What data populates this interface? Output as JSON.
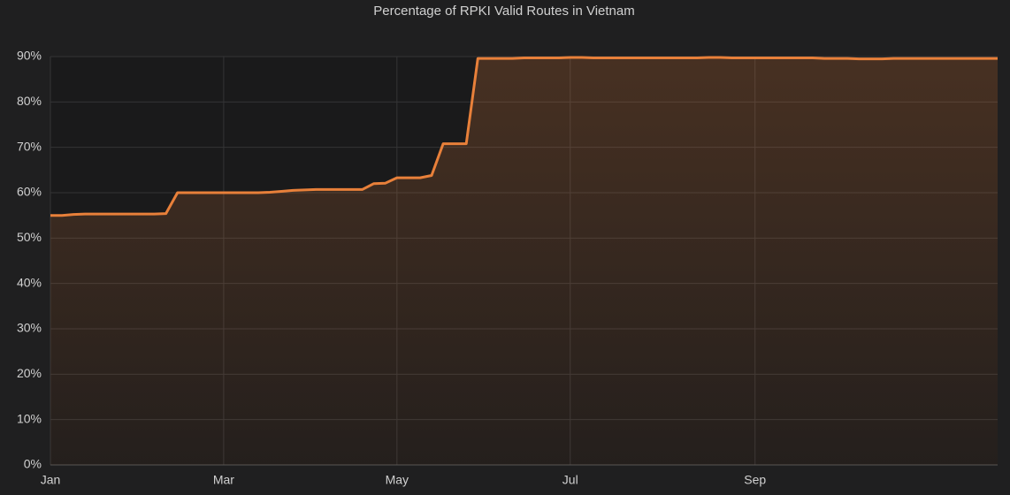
{
  "chart_data": {
    "type": "line",
    "title": "Percentage of RPKI Valid Routes in Vietnam",
    "categories": [
      "Jan",
      null,
      null,
      null,
      null,
      null,
      null,
      null,
      null,
      null,
      null,
      null,
      null,
      null,
      null,
      "Mar",
      null,
      null,
      null,
      null,
      null,
      null,
      null,
      null,
      null,
      null,
      null,
      null,
      null,
      null,
      "May",
      null,
      null,
      null,
      null,
      null,
      null,
      null,
      null,
      null,
      null,
      null,
      null,
      null,
      null,
      "Jul",
      null,
      null,
      null,
      null,
      null,
      null,
      null,
      null,
      null,
      null,
      null,
      null,
      null,
      null,
      null,
      "Sep",
      null,
      null,
      null,
      null,
      null,
      null,
      null,
      null,
      null,
      null,
      null,
      null,
      null,
      null,
      null,
      null,
      null,
      null,
      null,
      null,
      null
    ],
    "values": [
      55,
      55,
      55.2,
      55.3,
      55.3,
      55.3,
      55.3,
      55.3,
      55.3,
      55.3,
      55.4,
      60,
      60,
      60,
      60,
      60,
      60,
      60,
      60,
      60.1,
      60.3,
      60.5,
      60.6,
      60.7,
      60.7,
      60.7,
      60.7,
      60.7,
      62,
      62.1,
      63.3,
      63.3,
      63.3,
      63.8,
      70.8,
      70.8,
      70.8,
      89.6,
      89.6,
      89.6,
      89.6,
      89.7,
      89.7,
      89.7,
      89.7,
      89.8,
      89.8,
      89.7,
      89.7,
      89.7,
      89.7,
      89.7,
      89.7,
      89.7,
      89.7,
      89.7,
      89.7,
      89.8,
      89.8,
      89.7,
      89.7,
      89.7,
      89.7,
      89.7,
      89.7,
      89.7,
      89.7,
      89.6,
      89.6,
      89.6,
      89.5,
      89.5,
      89.5,
      89.6,
      89.6,
      89.6,
      89.6,
      89.6,
      89.6,
      89.6,
      89.6,
      89.6,
      89.6
    ],
    "color": "#e8803a",
    "ylim": [
      0,
      90
    ],
    "yticks": [
      {
        "value": 0,
        "label": "0%"
      },
      {
        "value": 10,
        "label": "10%"
      },
      {
        "value": 20,
        "label": "20%"
      },
      {
        "value": 30,
        "label": "30%"
      },
      {
        "value": 40,
        "label": "40%"
      },
      {
        "value": 50,
        "label": "50%"
      },
      {
        "value": 60,
        "label": "60%"
      },
      {
        "value": 70,
        "label": "70%"
      },
      {
        "value": 80,
        "label": "80%"
      },
      {
        "value": 90,
        "label": "90%"
      }
    ],
    "grid": true
  }
}
